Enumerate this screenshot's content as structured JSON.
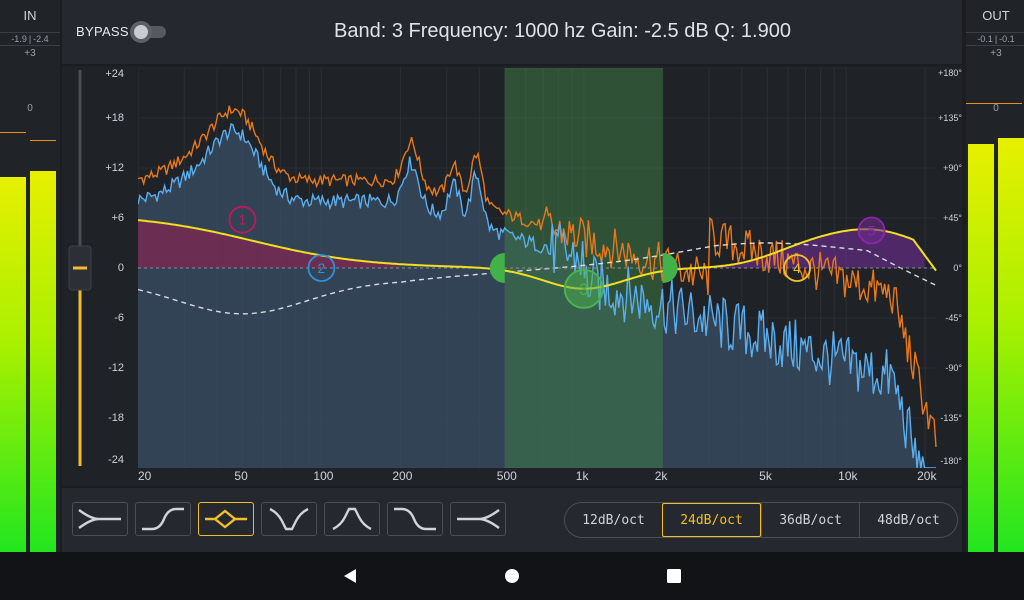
{
  "input_meter": {
    "title": "IN",
    "readout_left": "-1.9",
    "readout_right": "-2.4",
    "scale_top": "+3",
    "scale_mid": "0",
    "level_left": 0.68,
    "level_right": 0.69
  },
  "output_meter": {
    "title": "OUT",
    "readout_left": "-0.1",
    "readout_right": "-0.1",
    "scale_top": "+3",
    "scale_mid": "0",
    "level_left": 0.74,
    "level_right": 0.75
  },
  "header": {
    "bypass_label": "BYPASS",
    "bypass_on": false,
    "status": "Band: 3 Frequency: 1000 hz Gain: -2.5 dB Q: 1.900"
  },
  "gain_axis": [
    "+24",
    "+18",
    "+12",
    "+6",
    "0",
    "-6",
    "-12",
    "-18",
    "-24"
  ],
  "phase_axis": [
    "+180°",
    "+135°",
    "+90°",
    "+45°",
    "0°",
    "-45°",
    "-90°",
    "-135°",
    "-180°"
  ],
  "freq_axis": [
    "20",
    "50",
    "100",
    "200",
    "500",
    "1k",
    "2k",
    "5k",
    "10k",
    "20k"
  ],
  "bands": [
    {
      "number": "1",
      "color": "#c2185b"
    },
    {
      "number": "2",
      "color": "#2f8fd8"
    },
    {
      "number": "3",
      "color": "#4caf50"
    },
    {
      "number": "4",
      "color": "#f2bf2a"
    },
    {
      "number": "5",
      "color": "#8e24aa"
    }
  ],
  "master_gain": {
    "value_db": 0
  },
  "filter_shapes": [
    {
      "name": "low-cut-shape",
      "selected": false
    },
    {
      "name": "low-shelf-shape",
      "selected": false
    },
    {
      "name": "bell-shape",
      "selected": true
    },
    {
      "name": "notch-shape",
      "selected": false
    },
    {
      "name": "band-pass-shape",
      "selected": false
    },
    {
      "name": "high-shelf-shape",
      "selected": false
    },
    {
      "name": "high-cut-shape",
      "selected": false
    }
  ],
  "slopes": [
    {
      "label": "12dB/oct",
      "selected": false
    },
    {
      "label": "24dB/oct",
      "selected": true
    },
    {
      "label": "36dB/oct",
      "selected": false
    },
    {
      "label": "48dB/oct",
      "selected": false
    }
  ],
  "colors": {
    "accent": "#f2bf2a",
    "spectrum_in": "#e8781a",
    "spectrum_out": "#5aaef0",
    "eq_curve": "#f0e020"
  },
  "nav": {
    "back": "back-icon",
    "home": "home-icon",
    "recents": "recents-icon"
  }
}
